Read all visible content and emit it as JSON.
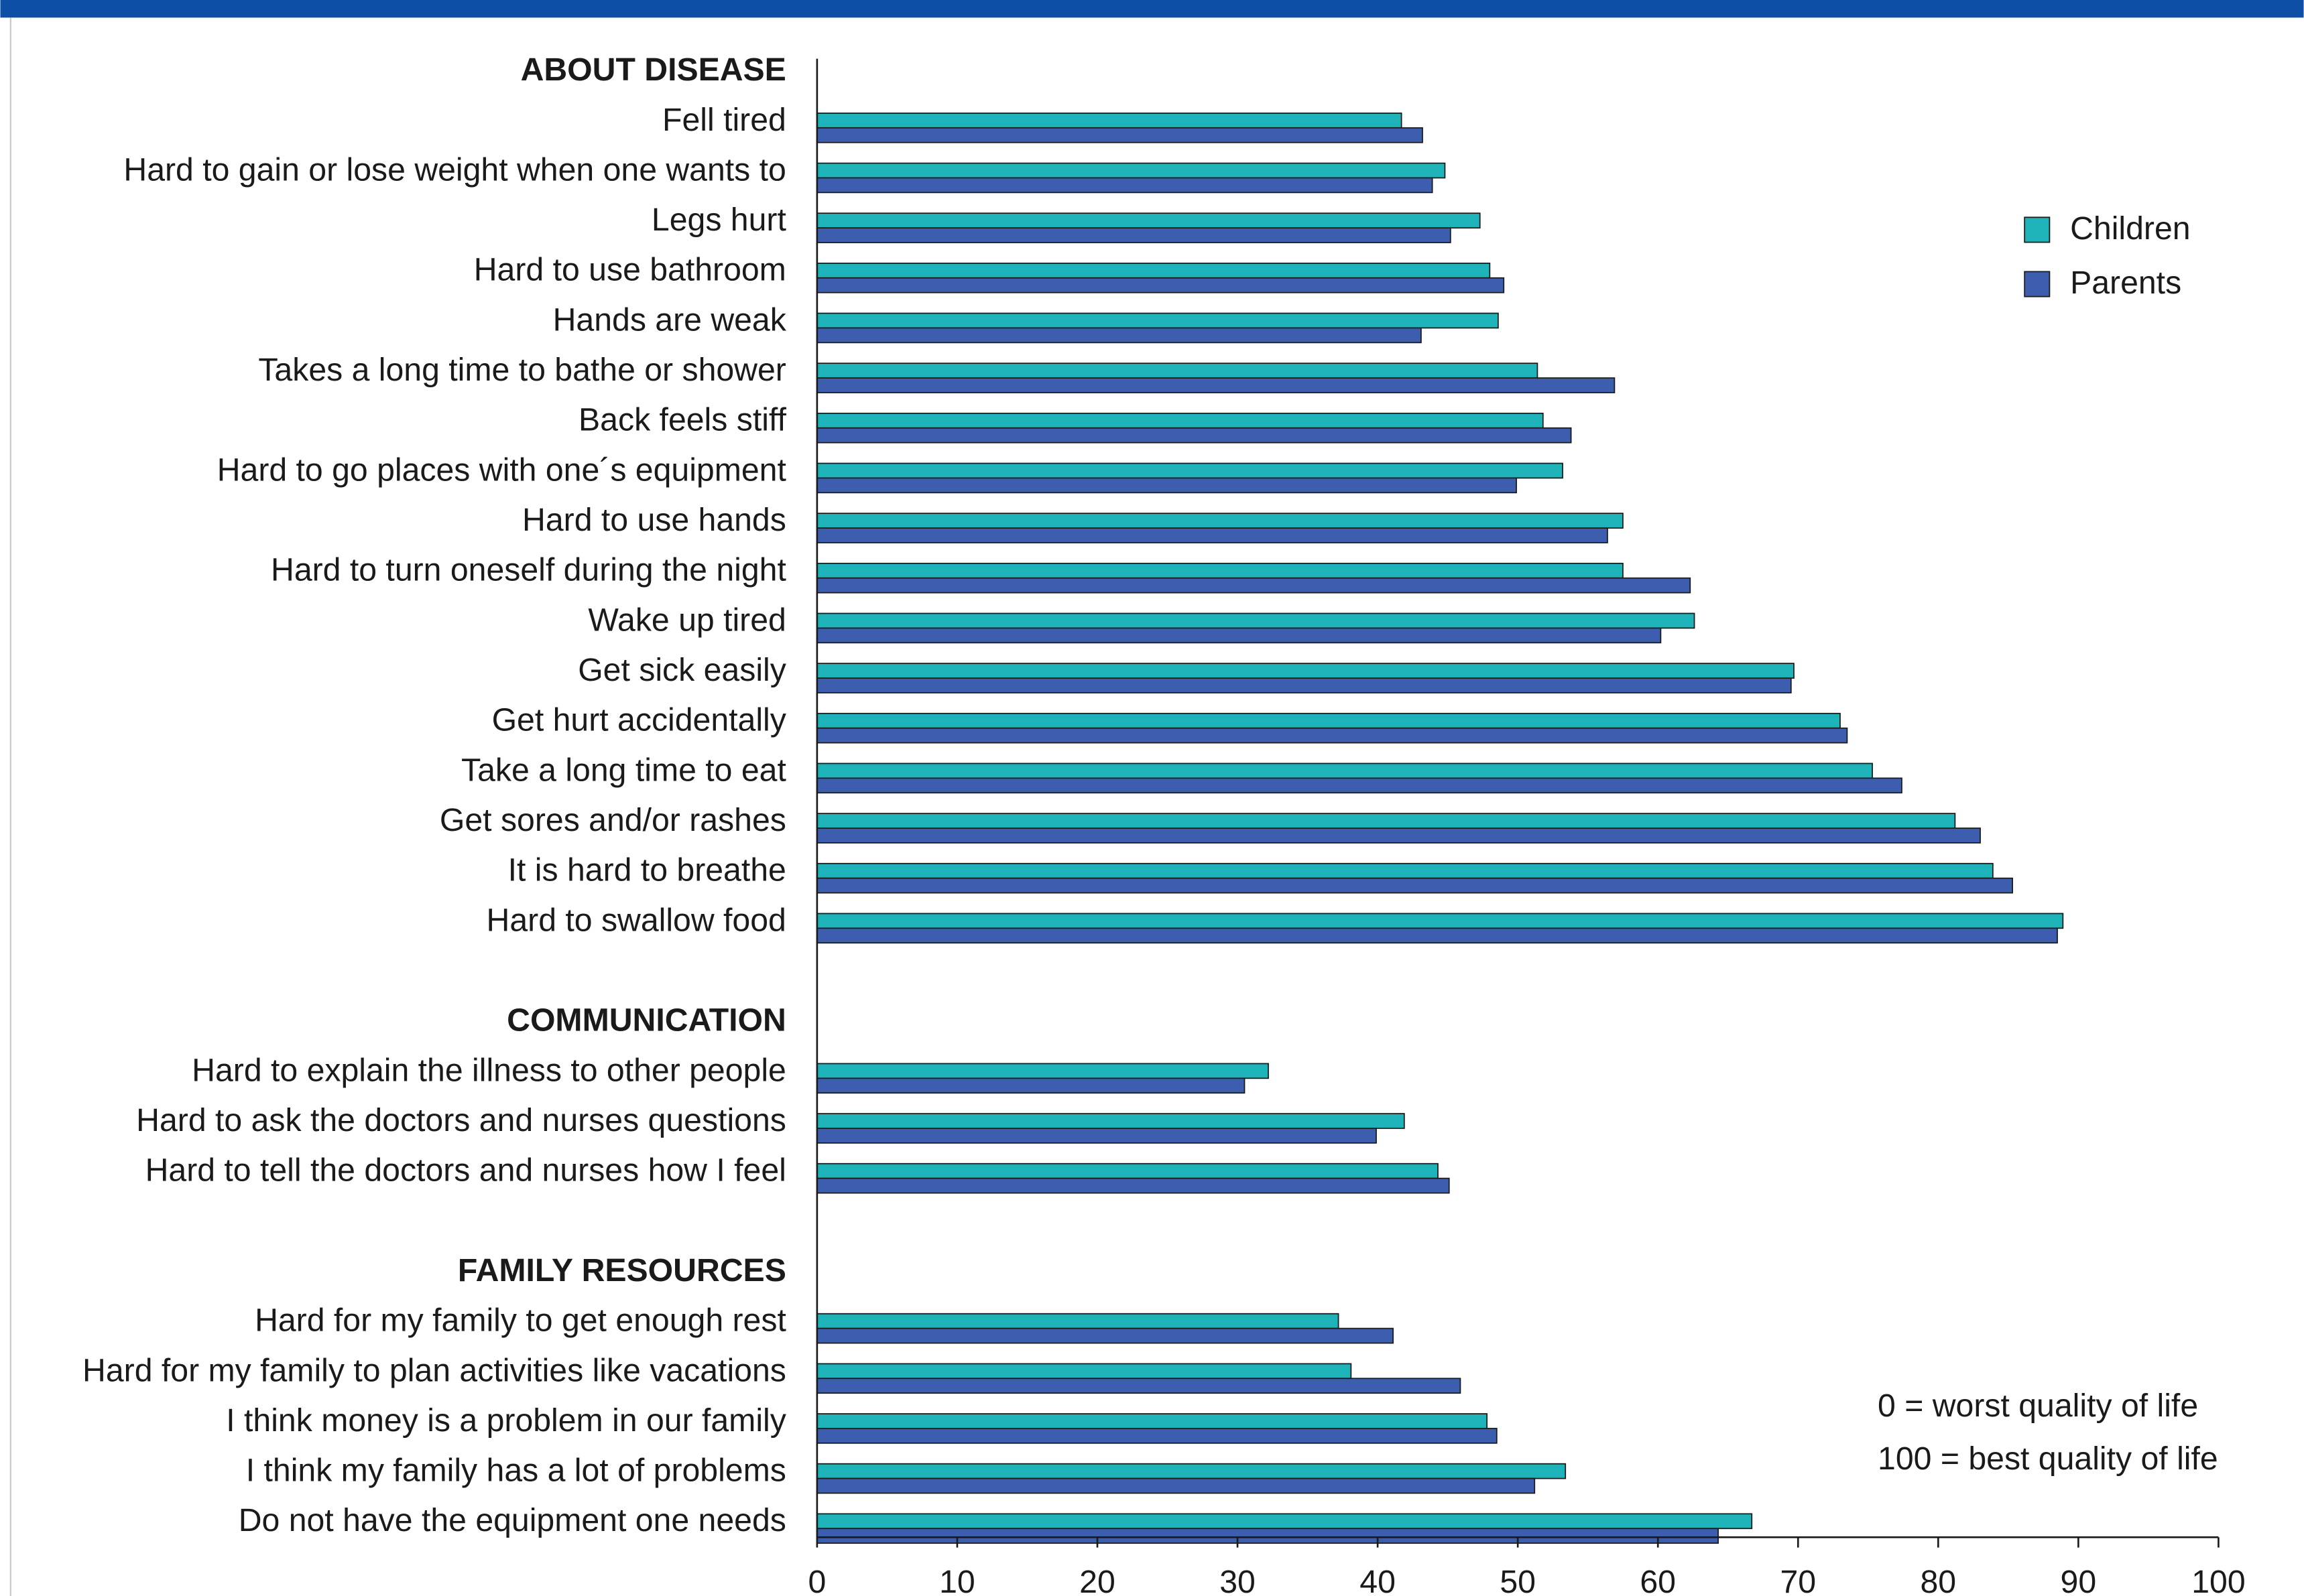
{
  "chart_data": {
    "type": "grouped-hbar",
    "sections": [
      "ABOUT DISEASE",
      "COMMUNICATION",
      "FAMILY RESOURCES"
    ],
    "categories": [
      [
        "Fell tired",
        "Hard to gain or lose weight when one wants to",
        "Legs hurt",
        "Hard to use bathroom",
        "Hands are weak",
        "Takes a long time to bathe or shower",
        "Back feels stiff",
        "Hard to go places with one´s equipment",
        "Hard to use hands",
        "Hard to turn oneself during the night",
        "Wake up tired",
        "Get sick easily",
        "Get hurt accidentally",
        "Take a long time to eat",
        "Get sores and/or rashes",
        "It is hard to breathe",
        "Hard to swallow food"
      ],
      [
        "Hard to explain the illness to other people",
        "Hard to ask the doctors and nurses questions",
        "Hard to tell the doctors and nurses how I feel"
      ],
      [
        "Hard for my family to get enough rest",
        "Hard for my family to plan activities like vacations",
        "I think money is a problem in our family",
        "I think my family has a lot of problems",
        "Do not have the equipment one needs"
      ]
    ],
    "series": [
      {
        "name": "Children",
        "color": "#1db3b8",
        "values": [
          [
            41.7,
            44.8,
            47.3,
            48.0,
            48.6,
            51.4,
            51.8,
            53.2,
            57.5,
            57.5,
            62.6,
            69.7,
            73.0,
            75.3,
            81.2,
            83.9,
            88.9
          ],
          [
            32.2,
            41.9,
            44.3
          ],
          [
            37.2,
            38.1,
            47.8,
            53.4,
            66.7
          ]
        ]
      },
      {
        "name": "Parents",
        "color": "#3d5eae",
        "values": [
          [
            43.2,
            43.9,
            45.2,
            49.0,
            43.1,
            56.9,
            53.8,
            49.9,
            56.4,
            62.3,
            60.2,
            69.5,
            73.5,
            77.4,
            83.0,
            85.3,
            88.5
          ],
          [
            30.5,
            39.9,
            45.1
          ],
          [
            41.1,
            45.9,
            48.5,
            51.2,
            64.3
          ]
        ]
      }
    ],
    "xlim": [
      0,
      100
    ],
    "xticks": [
      0,
      10,
      20,
      30,
      40,
      50,
      60,
      70,
      80,
      90,
      100
    ],
    "annotations": [
      "0 = worst quality of life",
      "100 = best quality of life"
    ],
    "legend_position": "upper right"
  }
}
